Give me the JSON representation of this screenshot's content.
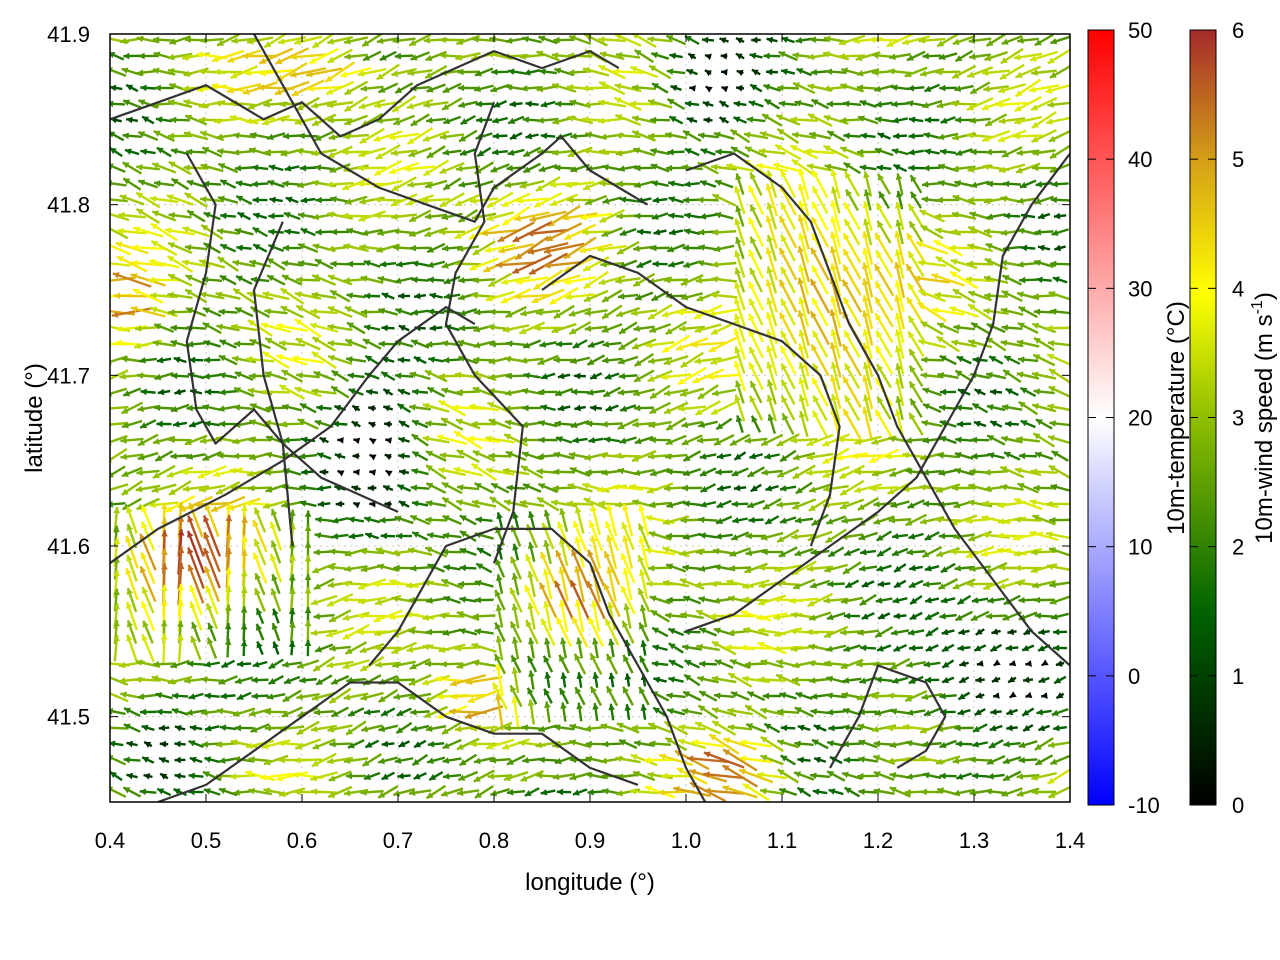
{
  "chart_data": {
    "type": "vector-field",
    "xlabel": "longitude (°)",
    "ylabel": "latitude (°)",
    "xlim": [
      0.4,
      1.4
    ],
    "ylim": [
      41.45,
      41.9
    ],
    "x_ticks": [
      "0.4",
      "0.5",
      "0.6",
      "0.7",
      "0.8",
      "0.9",
      "1.0",
      "1.1",
      "1.2",
      "1.3",
      "1.4"
    ],
    "y_ticks": [
      "41.5",
      "41.6",
      "41.7",
      "41.8",
      "41.9"
    ],
    "grid": true,
    "colorbars": [
      {
        "label": "10m-temperature (°C)",
        "range": [
          -10,
          50
        ],
        "ticks": [
          "-10",
          "0",
          "10",
          "20",
          "30",
          "40",
          "50"
        ],
        "colors": [
          "#0000ff",
          "#ffffff",
          "#ff0000"
        ]
      },
      {
        "label_main": "10m-wind speed (m s",
        "label_sup": "-1",
        "label_end": ")",
        "range": [
          0,
          6
        ],
        "ticks": [
          "0",
          "1",
          "2",
          "3",
          "4",
          "5",
          "6"
        ],
        "colors": [
          "#000000",
          "#006400",
          "#8fbf00",
          "#ffff00",
          "#d4a017",
          "#a52a2a"
        ]
      }
    ],
    "contour_color": "#333333",
    "contours": [
      [
        [
          0.4,
          41.85
        ],
        [
          0.45,
          41.86
        ],
        [
          0.5,
          41.87
        ],
        [
          0.56,
          41.85
        ],
        [
          0.6,
          41.86
        ],
        [
          0.64,
          41.84
        ],
        [
          0.68,
          41.85
        ],
        [
          0.72,
          41.87
        ],
        [
          0.76,
          41.88
        ],
        [
          0.8,
          41.89
        ],
        [
          0.85,
          41.88
        ],
        [
          0.9,
          41.89
        ],
        [
          0.93,
          41.88
        ]
      ],
      [
        [
          0.55,
          41.9
        ],
        [
          0.58,
          41.87
        ],
        [
          0.62,
          41.83
        ],
        [
          0.68,
          41.81
        ],
        [
          0.73,
          41.8
        ],
        [
          0.78,
          41.79
        ],
        [
          0.8,
          41.81
        ],
        [
          0.85,
          41.83
        ],
        [
          0.87,
          41.84
        ],
        [
          0.9,
          41.82
        ],
        [
          0.96,
          41.8
        ]
      ],
      [
        [
          0.48,
          41.83
        ],
        [
          0.51,
          41.8
        ],
        [
          0.5,
          41.76
        ],
        [
          0.48,
          41.72
        ],
        [
          0.49,
          41.68
        ],
        [
          0.51,
          41.66
        ],
        [
          0.55,
          41.68
        ],
        [
          0.58,
          41.66
        ],
        [
          0.59,
          41.6
        ]
      ],
      [
        [
          0.58,
          41.79
        ],
        [
          0.55,
          41.75
        ],
        [
          0.56,
          41.7
        ],
        [
          0.58,
          41.66
        ],
        [
          0.62,
          41.64
        ],
        [
          0.66,
          41.63
        ],
        [
          0.7,
          41.62
        ]
      ],
      [
        [
          0.4,
          41.59
        ],
        [
          0.45,
          41.61
        ],
        [
          0.52,
          41.63
        ],
        [
          0.58,
          41.65
        ],
        [
          0.63,
          41.67
        ],
        [
          0.67,
          41.7
        ],
        [
          0.7,
          41.72
        ],
        [
          0.75,
          41.74
        ],
        [
          0.78,
          41.73
        ]
      ],
      [
        [
          0.8,
          41.86
        ],
        [
          0.78,
          41.83
        ],
        [
          0.79,
          41.79
        ],
        [
          0.76,
          41.76
        ],
        [
          0.75,
          41.73
        ],
        [
          0.78,
          41.7
        ],
        [
          0.83,
          41.67
        ],
        [
          0.82,
          41.62
        ],
        [
          0.8,
          41.59
        ]
      ],
      [
        [
          0.67,
          41.53
        ],
        [
          0.7,
          41.55
        ],
        [
          0.73,
          41.58
        ],
        [
          0.75,
          41.6
        ],
        [
          0.8,
          41.61
        ],
        [
          0.86,
          41.61
        ],
        [
          0.9,
          41.59
        ],
        [
          0.92,
          41.56
        ],
        [
          0.95,
          41.53
        ],
        [
          0.98,
          41.5
        ],
        [
          1.0,
          41.47
        ],
        [
          1.02,
          41.45
        ]
      ],
      [
        [
          1.0,
          41.82
        ],
        [
          1.05,
          41.83
        ],
        [
          1.1,
          41.81
        ],
        [
          1.13,
          41.79
        ],
        [
          1.15,
          41.76
        ],
        [
          1.17,
          41.73
        ],
        [
          1.2,
          41.7
        ],
        [
          1.22,
          41.67
        ],
        [
          1.25,
          41.64
        ],
        [
          1.28,
          41.61
        ],
        [
          1.32,
          41.58
        ],
        [
          1.36,
          41.55
        ],
        [
          1.4,
          41.53
        ]
      ],
      [
        [
          1.4,
          41.83
        ],
        [
          1.36,
          41.8
        ],
        [
          1.33,
          41.77
        ],
        [
          1.32,
          41.73
        ],
        [
          1.3,
          41.7
        ],
        [
          1.28,
          41.68
        ],
        [
          1.26,
          41.66
        ],
        [
          1.24,
          41.64
        ],
        [
          1.2,
          41.62
        ],
        [
          1.15,
          41.6
        ],
        [
          1.1,
          41.58
        ],
        [
          1.05,
          41.56
        ],
        [
          1.0,
          41.55
        ]
      ],
      [
        [
          1.15,
          41.47
        ],
        [
          1.18,
          41.5
        ],
        [
          1.2,
          41.53
        ],
        [
          1.25,
          41.52
        ],
        [
          1.27,
          41.5
        ],
        [
          1.25,
          41.48
        ],
        [
          1.22,
          41.47
        ]
      ],
      [
        [
          0.45,
          41.45
        ],
        [
          0.5,
          41.46
        ],
        [
          0.55,
          41.48
        ],
        [
          0.6,
          41.5
        ],
        [
          0.65,
          41.52
        ],
        [
          0.7,
          41.52
        ],
        [
          0.75,
          41.5
        ],
        [
          0.8,
          41.49
        ],
        [
          0.85,
          41.49
        ],
        [
          0.9,
          41.47
        ],
        [
          0.95,
          41.46
        ]
      ],
      [
        [
          0.85,
          41.75
        ],
        [
          0.9,
          41.77
        ],
        [
          0.95,
          41.76
        ],
        [
          1.0,
          41.74
        ],
        [
          1.05,
          41.73
        ],
        [
          1.1,
          41.72
        ],
        [
          1.14,
          41.7
        ],
        [
          1.16,
          41.67
        ],
        [
          1.15,
          41.63
        ],
        [
          1.13,
          41.6
        ]
      ]
    ]
  }
}
